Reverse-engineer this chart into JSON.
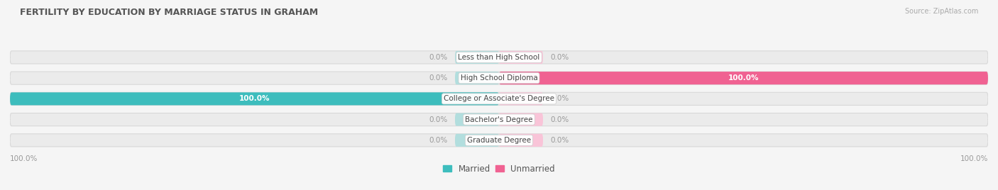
{
  "title": "FERTILITY BY EDUCATION BY MARRIAGE STATUS IN GRAHAM",
  "source": "Source: ZipAtlas.com",
  "categories": [
    "Less than High School",
    "High School Diploma",
    "College or Associate's Degree",
    "Bachelor's Degree",
    "Graduate Degree"
  ],
  "married_values": [
    0.0,
    0.0,
    100.0,
    0.0,
    0.0
  ],
  "unmarried_values": [
    0.0,
    100.0,
    0.0,
    0.0,
    0.0
  ],
  "married_color": "#3dbdbd",
  "unmarried_color": "#f06292",
  "married_color_light": "#b2dede",
  "unmarried_color_light": "#f9c4d8",
  "bar_bg_color": "#ebebeb",
  "bar_border_color": "#d8d8d8",
  "title_color": "#555555",
  "source_color": "#aaaaaa",
  "label_color": "#999999",
  "value_label_on_bar_color": "#ffffff",
  "axis_label_color": "#999999",
  "legend_marker_married": "#3dbdbd",
  "legend_marker_unmarried": "#f06292",
  "bar_height": 0.62,
  "figsize": [
    14.06,
    2.68
  ],
  "dpi": 100
}
